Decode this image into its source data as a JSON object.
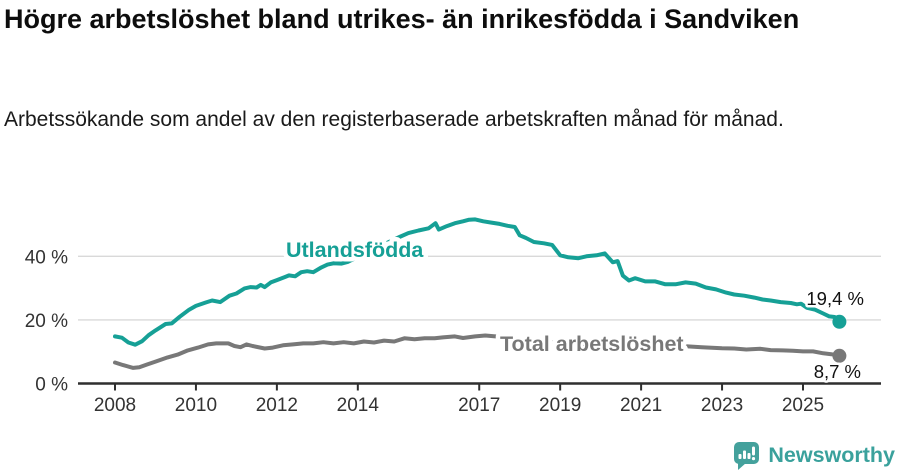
{
  "chart_data": {
    "type": "line",
    "title": "Högre arbetslöshet bland utrikes- än inrikesfödda i Sandviken",
    "subtitle": "Arbetssökande som andel av den registerbaserade arbetskraften månad för månad.",
    "unit": "%",
    "ylim": [
      0,
      55
    ],
    "xlim": [
      2007.1,
      2026.9
    ],
    "grid": "horizontal",
    "yticks": [
      {
        "value": 0,
        "label": "0 %"
      },
      {
        "value": 20,
        "label": "20 %"
      },
      {
        "value": 40,
        "label": "40 %"
      }
    ],
    "xticks": [
      {
        "value": 2008,
        "label": "2008"
      },
      {
        "value": 2010,
        "label": "2010"
      },
      {
        "value": 2012,
        "label": "2012"
      },
      {
        "value": 2014,
        "label": "2014"
      },
      {
        "value": 2017,
        "label": "2017"
      },
      {
        "value": 2019,
        "label": "2019"
      },
      {
        "value": 2021,
        "label": "2021"
      },
      {
        "value": 2023,
        "label": "2023"
      },
      {
        "value": 2025,
        "label": "2025"
      }
    ],
    "series": [
      {
        "name": "Utlandsfödda",
        "color": "#16a096",
        "end_label": "19,4 %",
        "end_value": 19.4,
        "points": [
          [
            2008.0,
            14.8
          ],
          [
            2008.17,
            14.4
          ],
          [
            2008.33,
            12.9
          ],
          [
            2008.5,
            12.2
          ],
          [
            2008.67,
            13.3
          ],
          [
            2008.83,
            15.2
          ],
          [
            2009.0,
            16.7
          ],
          [
            2009.25,
            18.7
          ],
          [
            2009.4,
            18.9
          ],
          [
            2009.6,
            21.0
          ],
          [
            2009.83,
            23.2
          ],
          [
            2010.0,
            24.4
          ],
          [
            2010.25,
            25.5
          ],
          [
            2010.4,
            26.1
          ],
          [
            2010.6,
            25.6
          ],
          [
            2010.83,
            27.6
          ],
          [
            2011.0,
            28.3
          ],
          [
            2011.2,
            29.9
          ],
          [
            2011.35,
            30.3
          ],
          [
            2011.5,
            30.2
          ],
          [
            2011.6,
            31.0
          ],
          [
            2011.7,
            30.3
          ],
          [
            2011.85,
            31.8
          ],
          [
            2012.0,
            32.5
          ],
          [
            2012.2,
            33.5
          ],
          [
            2012.3,
            34.0
          ],
          [
            2012.45,
            33.7
          ],
          [
            2012.6,
            35.0
          ],
          [
            2012.75,
            35.3
          ],
          [
            2012.9,
            35.0
          ],
          [
            2013.1,
            36.5
          ],
          [
            2013.25,
            37.4
          ],
          [
            2013.4,
            37.8
          ],
          [
            2013.6,
            37.7
          ],
          [
            2013.75,
            38.2
          ],
          [
            2014.0,
            39.8
          ],
          [
            2014.25,
            41.2
          ],
          [
            2014.5,
            42.8
          ],
          [
            2014.75,
            44.4
          ],
          [
            2015.0,
            45.9
          ],
          [
            2015.25,
            47.3
          ],
          [
            2015.5,
            48.1
          ],
          [
            2015.75,
            48.8
          ],
          [
            2015.92,
            50.4
          ],
          [
            2016.0,
            48.4
          ],
          [
            2016.2,
            49.5
          ],
          [
            2016.4,
            50.4
          ],
          [
            2016.6,
            51.0
          ],
          [
            2016.75,
            51.5
          ],
          [
            2016.9,
            51.6
          ],
          [
            2017.1,
            51.0
          ],
          [
            2017.3,
            50.6
          ],
          [
            2017.5,
            50.2
          ],
          [
            2017.7,
            49.6
          ],
          [
            2017.88,
            49.2
          ],
          [
            2018.0,
            46.6
          ],
          [
            2018.15,
            45.8
          ],
          [
            2018.35,
            44.5
          ],
          [
            2018.6,
            44.1
          ],
          [
            2018.8,
            43.6
          ],
          [
            2019.0,
            40.3
          ],
          [
            2019.2,
            39.7
          ],
          [
            2019.45,
            39.4
          ],
          [
            2019.65,
            40.0
          ],
          [
            2019.9,
            40.3
          ],
          [
            2020.1,
            40.9
          ],
          [
            2020.3,
            38.1
          ],
          [
            2020.42,
            38.5
          ],
          [
            2020.55,
            33.9
          ],
          [
            2020.7,
            32.4
          ],
          [
            2020.85,
            33.1
          ],
          [
            2021.1,
            32.1
          ],
          [
            2021.35,
            32.1
          ],
          [
            2021.6,
            31.2
          ],
          [
            2021.85,
            31.2
          ],
          [
            2022.1,
            31.8
          ],
          [
            2022.35,
            31.4
          ],
          [
            2022.6,
            30.2
          ],
          [
            2022.85,
            29.6
          ],
          [
            2023.1,
            28.6
          ],
          [
            2023.3,
            28.0
          ],
          [
            2023.55,
            27.6
          ],
          [
            2023.8,
            27.0
          ],
          [
            2024.0,
            26.4
          ],
          [
            2024.2,
            26.1
          ],
          [
            2024.45,
            25.6
          ],
          [
            2024.7,
            25.3
          ],
          [
            2024.85,
            24.9
          ],
          [
            2024.95,
            25.1
          ],
          [
            2025.1,
            23.8
          ],
          [
            2025.3,
            23.2
          ],
          [
            2025.5,
            22.0
          ],
          [
            2025.65,
            21.1
          ],
          [
            2025.78,
            20.9
          ],
          [
            2025.9,
            19.4
          ]
        ]
      },
      {
        "name": "Total arbetslöshet",
        "color": "#787878",
        "end_label": "8,7 %",
        "end_value": 8.7,
        "points": [
          [
            2008.0,
            6.6
          ],
          [
            2008.2,
            5.8
          ],
          [
            2008.45,
            4.9
          ],
          [
            2008.6,
            5.1
          ],
          [
            2008.8,
            6.0
          ],
          [
            2009.0,
            6.9
          ],
          [
            2009.3,
            8.2
          ],
          [
            2009.55,
            9.1
          ],
          [
            2009.8,
            10.4
          ],
          [
            2010.05,
            11.3
          ],
          [
            2010.3,
            12.3
          ],
          [
            2010.5,
            12.6
          ],
          [
            2010.8,
            12.6
          ],
          [
            2010.95,
            11.8
          ],
          [
            2011.1,
            11.4
          ],
          [
            2011.25,
            12.3
          ],
          [
            2011.4,
            11.8
          ],
          [
            2011.7,
            11.0
          ],
          [
            2011.9,
            11.3
          ],
          [
            2012.15,
            12.0
          ],
          [
            2012.4,
            12.3
          ],
          [
            2012.65,
            12.6
          ],
          [
            2012.9,
            12.6
          ],
          [
            2013.15,
            13.0
          ],
          [
            2013.4,
            12.6
          ],
          [
            2013.65,
            13.0
          ],
          [
            2013.9,
            12.6
          ],
          [
            2014.15,
            13.2
          ],
          [
            2014.4,
            12.9
          ],
          [
            2014.65,
            13.5
          ],
          [
            2014.9,
            13.2
          ],
          [
            2015.15,
            14.2
          ],
          [
            2015.4,
            13.9
          ],
          [
            2015.65,
            14.2
          ],
          [
            2015.9,
            14.2
          ],
          [
            2016.1,
            14.5
          ],
          [
            2016.4,
            14.8
          ],
          [
            2016.6,
            14.3
          ],
          [
            2016.9,
            14.8
          ],
          [
            2017.15,
            15.1
          ],
          [
            2017.4,
            14.8
          ],
          [
            2017.6,
            14.5
          ],
          [
            2018.0,
            14.0
          ],
          [
            2018.5,
            13.4
          ],
          [
            2019.0,
            12.8
          ],
          [
            2019.5,
            12.3
          ],
          [
            2020.0,
            12.6
          ],
          [
            2020.5,
            13.3
          ],
          [
            2021.0,
            12.8
          ],
          [
            2021.5,
            12.2
          ],
          [
            2022.0,
            11.8
          ],
          [
            2022.5,
            11.4
          ],
          [
            2023.0,
            11.1
          ],
          [
            2023.3,
            11.0
          ],
          [
            2023.6,
            10.7
          ],
          [
            2023.95,
            10.9
          ],
          [
            2024.2,
            10.5
          ],
          [
            2024.5,
            10.4
          ],
          [
            2024.75,
            10.3
          ],
          [
            2025.0,
            10.1
          ],
          [
            2025.25,
            10.1
          ],
          [
            2025.5,
            9.5
          ],
          [
            2025.7,
            9.2
          ],
          [
            2025.9,
            8.7
          ]
        ]
      }
    ]
  },
  "footer": {
    "brand": "Newsworthy",
    "brand_color": "#3aa19c",
    "icon": "newsworthy-chart-bubble-icon"
  }
}
